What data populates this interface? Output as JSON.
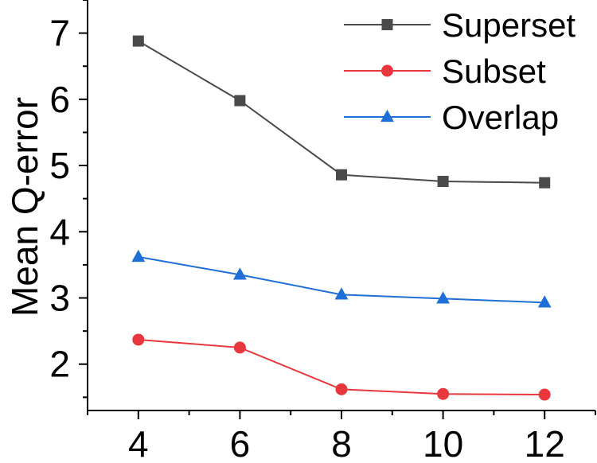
{
  "chart_data": {
    "type": "line",
    "title": "",
    "xlabel": "",
    "ylabel": "Mean Q-error",
    "x": [
      4,
      6,
      8,
      10,
      12
    ],
    "xticks": [
      "4",
      "6",
      "8",
      "10",
      "12"
    ],
    "yticks": [
      "2",
      "3",
      "4",
      "5",
      "6",
      "7"
    ],
    "xlim": [
      3,
      13
    ],
    "ylim": [
      1.3,
      7.5
    ],
    "grid": false,
    "legend_position": "top-right",
    "series": [
      {
        "name": "Superset",
        "color": "#4a4a4a",
        "marker": "square",
        "values": [
          6.88,
          5.98,
          4.86,
          4.76,
          4.74
        ]
      },
      {
        "name": "Subset",
        "color": "#e8383d",
        "marker": "circle",
        "values": [
          2.37,
          2.25,
          1.62,
          1.55,
          1.54
        ]
      },
      {
        "name": "Overlap",
        "color": "#1f6fd8",
        "marker": "triangle",
        "values": [
          3.62,
          3.35,
          3.05,
          2.99,
          2.93
        ]
      }
    ]
  }
}
